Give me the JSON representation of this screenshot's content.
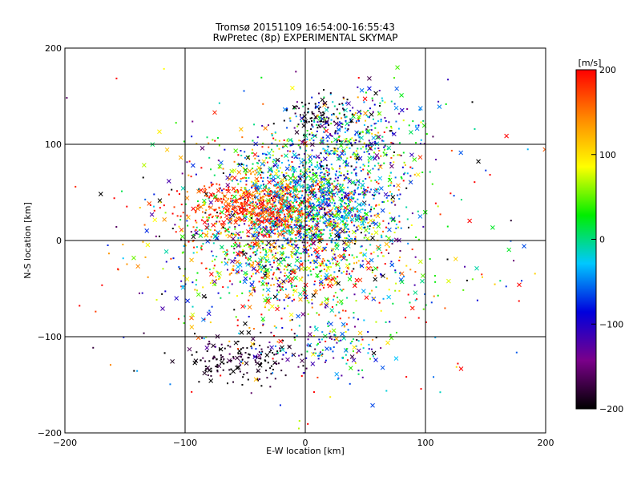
{
  "chart_data": {
    "type": "scatter",
    "title": "Tromsø 20151109 16:54:00-16:55:43",
    "subtitle": "RwPretec (8p) EXPERIMENTAL SKYMAP",
    "xlabel": "E-W location [km]",
    "ylabel": "N-S location [km]",
    "xlim": [
      -200,
      200
    ],
    "ylim": [
      -200,
      200
    ],
    "xticks": [
      -200,
      -100,
      0,
      100,
      200
    ],
    "yticks": [
      -200,
      -100,
      0,
      100,
      200
    ],
    "grid_lines": [
      -100,
      0,
      100
    ],
    "grid": true,
    "markers": [
      "dot",
      "x"
    ],
    "clusters": [
      {
        "x": -10,
        "y": 25,
        "sx": 45,
        "sy": 40,
        "n": 1400,
        "vmean": 20,
        "vsd": 120
      },
      {
        "x": -40,
        "y": 35,
        "sx": 30,
        "sy": 14,
        "n": 500,
        "vmean": 180,
        "vsd": 30
      },
      {
        "x": 15,
        "y": 45,
        "sx": 30,
        "sy": 30,
        "n": 600,
        "vmean": -40,
        "vsd": 45
      },
      {
        "x": 40,
        "y": 110,
        "sx": 30,
        "sy": 22,
        "n": 350,
        "vmean": -30,
        "vsd": 90
      },
      {
        "x": 10,
        "y": 130,
        "sx": 14,
        "sy": 10,
        "n": 80,
        "vmean": -190,
        "vsd": 15
      },
      {
        "x": -55,
        "y": -125,
        "sx": 22,
        "sy": 12,
        "n": 170,
        "vmean": -190,
        "vsd": 20
      },
      {
        "x": 20,
        "y": -115,
        "sx": 30,
        "sy": 14,
        "n": 130,
        "vmean": -50,
        "vsd": 90
      },
      {
        "x": 0,
        "y": -40,
        "sx": 50,
        "sy": 30,
        "n": 350,
        "vmean": 60,
        "vsd": 130
      },
      {
        "x": 0,
        "y": 0,
        "sx": 95,
        "sy": 85,
        "n": 380,
        "vmean": 50,
        "vsd": 150
      }
    ],
    "colorbar": {
      "label": "[m/s]",
      "min": -200,
      "max": 200,
      "ticks": [
        200,
        100,
        0,
        -100,
        -200
      ],
      "colors": [
        "#000000",
        "#7a008a",
        "#0000dd",
        "#00c8ff",
        "#00ee00",
        "#ffff00",
        "#ff8800",
        "#ff0000"
      ]
    }
  }
}
